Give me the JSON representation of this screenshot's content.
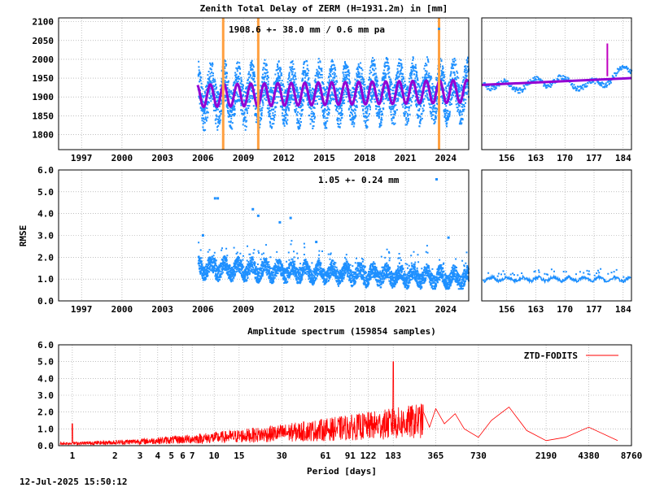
{
  "titles": {
    "ztd": "Zenith Total Delay of ZERM (H=1931.2m) in [mm]",
    "spectrum": "Amplitude spectrum (159854 samples)"
  },
  "annotations": {
    "ztd_stats": "1908.6 +-  38.0 mm /  0.6 mm pa",
    "rmse_stats": "1.05 +-  0.24 mm"
  },
  "labels": {
    "rmse_ylabel": "RMSE",
    "period_xlabel": "Period [days]",
    "timestamp": "12-Jul-2025 15:50:12"
  },
  "legend": {
    "entry": "ZTD-FODITS"
  },
  "colors": {
    "data": "#1e90ff",
    "trend": "#9400d3",
    "events": "#ffa040",
    "spectrum": "#ff0000",
    "magenta": "#c000c0"
  },
  "chart_data": [
    {
      "type": "scatter",
      "id": "ztd_timeseries",
      "title": "Zenith Total Delay of ZERM (H=1931.2m) in [mm]",
      "xlim": [
        1995.3,
        2025.7
      ],
      "ylim": [
        1760,
        2110
      ],
      "x_ticks": [
        "1997",
        "2000",
        "2003",
        "2006",
        "2009",
        "2012",
        "2015",
        "2018",
        "2021",
        "2024"
      ],
      "y_ticks": [
        "1800",
        "1850",
        "1900",
        "1950",
        "2000",
        "2050",
        "2100"
      ],
      "data_start_year": 2005.6,
      "mean_mm": 1908.6,
      "std_mm": 38.0,
      "trend_mm_per_year": 0.6,
      "seasonal_amplitude_mm": 40,
      "event_lines_years": [
        2007.5,
        2010.1,
        2023.5
      ],
      "grid": true
    },
    {
      "type": "scatter",
      "id": "ztd_recent",
      "xlim": [
        150,
        186
      ],
      "ylim": [
        1760,
        2110
      ],
      "x_ticks": [
        "156",
        "163",
        "170",
        "177",
        "184"
      ],
      "trend_start_mm": 1932,
      "trend_end_mm": 1950,
      "grid": true
    },
    {
      "type": "scatter",
      "id": "rmse_timeseries",
      "ylabel": "RMSE",
      "xlim": [
        1995.3,
        2025.7
      ],
      "ylim": [
        0.0,
        6.0
      ],
      "x_ticks": [
        "1997",
        "2000",
        "2003",
        "2006",
        "2009",
        "2012",
        "2015",
        "2018",
        "2021",
        "2024"
      ],
      "y_ticks": [
        "0.0",
        "1.0",
        "2.0",
        "3.0",
        "4.0",
        "5.0",
        "6.0"
      ],
      "mean_mm": 1.05,
      "std_mm": 0.24,
      "outliers": [
        [
          2006.9,
          4.7
        ],
        [
          2007.1,
          4.7
        ],
        [
          2009.7,
          4.2
        ],
        [
          2010.1,
          3.9
        ],
        [
          2011.7,
          3.6
        ],
        [
          2012.5,
          3.8
        ],
        [
          2006.0,
          3.0
        ],
        [
          2014.4,
          2.7
        ],
        [
          2024.2,
          2.9
        ]
      ],
      "grid": true
    },
    {
      "type": "scatter",
      "id": "rmse_recent",
      "xlim": [
        150,
        186
      ],
      "ylim": [
        0.0,
        6.0
      ],
      "x_ticks": [
        "156",
        "163",
        "170",
        "177",
        "184"
      ],
      "grid": true
    },
    {
      "type": "line",
      "id": "amplitude_spectrum",
      "title": "Amplitude spectrum (159854 samples)",
      "xlabel": "Period [days]",
      "x_scale": "log",
      "xlim": [
        0.8,
        8760
      ],
      "ylim": [
        0.0,
        6.0
      ],
      "x_ticks": [
        "1",
        "2",
        "3",
        "4",
        "5",
        "6",
        "7",
        "10",
        "15",
        "30",
        "61",
        "91",
        "122",
        "183",
        "365",
        "730",
        "2190",
        "4380",
        "8760"
      ],
      "y_ticks": [
        "0.0",
        "1.0",
        "2.0",
        "3.0",
        "4.0",
        "5.0",
        "6.0"
      ],
      "series": [
        {
          "name": "ZTD-FODITS",
          "peaks": [
            [
              1.0,
              1.3
            ],
            [
              183,
              5.0
            ],
            [
              365,
              2.2
            ],
            [
              1200,
              2.3
            ],
            [
              2190,
              0.3
            ],
            [
              4380,
              1.1
            ],
            [
              7000,
              0.3
            ]
          ]
        }
      ],
      "legend_position": "top-right",
      "grid": true
    }
  ]
}
